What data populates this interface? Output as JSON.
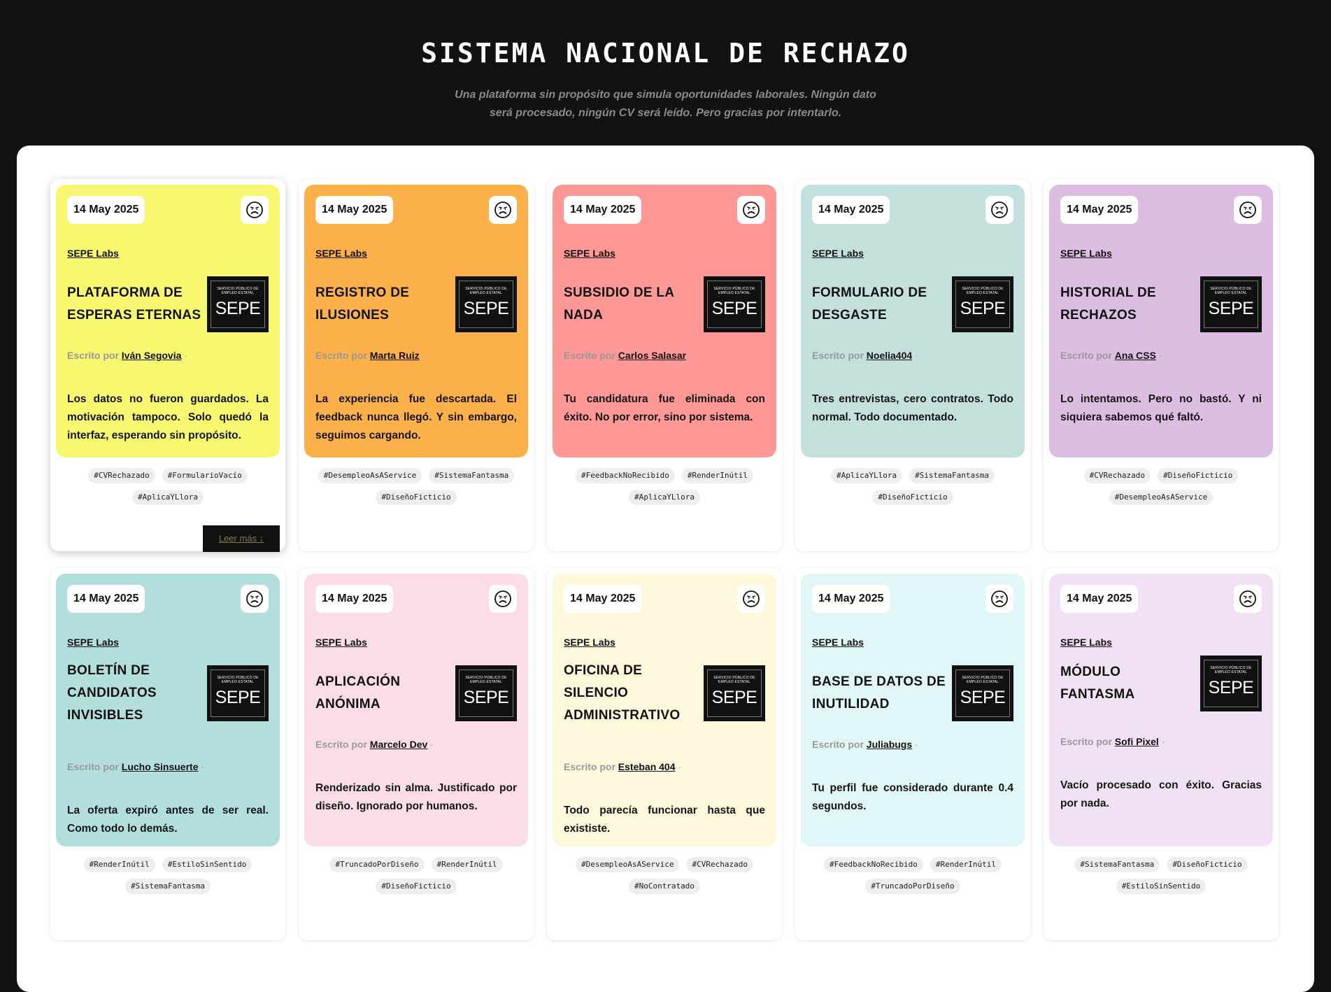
{
  "header": {
    "title": "SISTEMA NACIONAL DE RECHAZO",
    "subtitle": "Una plataforma sin propósito que simula oportunidades laborales. Ningún dato será procesado, ningún CV será leído. Pero gracias por intentarlo."
  },
  "common": {
    "org": "SEPE Labs",
    "written_by": "Escrito por",
    "logo_small": "SERVICIO PÚBLICO DE EMPLEO ESTATAL",
    "logo_big": "SEPE",
    "read_more": "Leer más ↓",
    "icon": "sad-face-icon"
  },
  "cards": [
    {
      "date": "14 May 2025",
      "color": "#f7f770",
      "title": "Plataforma de esperas eternas",
      "author": "Iván Segovia",
      "description": "Los datos no fueron guardados. La motivación tampoco. Solo quedó la interfaz, esperando sin propósito.",
      "tags": [
        "#CVRechazado",
        "#FormularioVacío",
        "#AplicaYLlora"
      ]
    },
    {
      "date": "14 May 2025",
      "color": "#fcb04a",
      "title": "Registro de ilusiones",
      "author": "Marta Ruiz",
      "description": "La experiencia fue descartada. El feedback nunca llegó. Y sin embargo, seguimos cargando.",
      "tags": [
        "#DesempleoAsAService",
        "#SistemaFantasma",
        "#DiseñoFicticio"
      ]
    },
    {
      "date": "14 May 2025",
      "color": "#fd9896",
      "title": "Subsidio de la nada",
      "author": "Carlos Salasar",
      "description": "Tu candidatura fue eliminada con éxito. No por error, sino por sistema.",
      "tags": [
        "#FeedbackNoRecibido",
        "#RenderInútil",
        "#AplicaYLlora"
      ]
    },
    {
      "date": "14 May 2025",
      "color": "#c3e0dd",
      "title": "Formulario de desgaste",
      "author": "Noelia404",
      "description": "Tres entrevistas, cero contratos. Todo normal. Todo documentado.",
      "tags": [
        "#AplicaYLlora",
        "#SistemaFantasma",
        "#DiseñoFicticio"
      ]
    },
    {
      "date": "14 May 2025",
      "color": "#dcbee3",
      "title": "Historial de rechazos",
      "author": "Ana CSS",
      "description": "Lo intentamos. Pero no bastó. Y ni siquiera sabemos qué faltó.",
      "tags": [
        "#CVRechazado",
        "#DiseñoFicticio",
        "#DesempleoAsAService"
      ]
    },
    {
      "date": "14 May 2025",
      "color": "#b2dfdb",
      "title": "Boletín de candidatos invisibles",
      "author": "Lucho Sinsuerte",
      "description": "La oferta expiró antes de ser real. Como todo lo demás.",
      "tags": [
        "#RenderInútil",
        "#EstiloSinSentido",
        "#SistemaFantasma"
      ]
    },
    {
      "date": "14 May 2025",
      "color": "#fcdde5",
      "title": "Aplicación anónima",
      "author": "Marcelo Dev",
      "description": "Renderizado sin alma. Justificado por diseño. Ignorado por humanos.",
      "tags": [
        "#TruncadoPorDiseño",
        "#RenderInútil",
        "#DiseñoFicticio"
      ]
    },
    {
      "date": "14 May 2025",
      "color": "#fdf7dc",
      "title": "Oficina de silencio administrativo",
      "author": "Esteban 404",
      "description": "Todo parecía funcionar hasta que exististe.",
      "tags": [
        "#DesempleoAsAService",
        "#CVRechazado",
        "#NoContratado"
      ]
    },
    {
      "date": "14 May 2025",
      "color": "#e0f6f7",
      "title": "Base de datos de inutilidad",
      "author": "Juliabugs",
      "description": "Tu perfil fue considerado durante 0.4 segundos.",
      "tags": [
        "#FeedbackNoRecibido",
        "#RenderInútil",
        "#TruncadoPorDiseño"
      ]
    },
    {
      "date": "14 May 2025",
      "color": "#f0e2f4",
      "title": "Módulo fantasma",
      "author": "Sofi Pixel",
      "description": "Vacío procesado con éxito. Gracias por nada.",
      "tags": [
        "#SistemaFantasma",
        "#DiseñoFicticio",
        "#EstiloSinSentido"
      ]
    }
  ]
}
